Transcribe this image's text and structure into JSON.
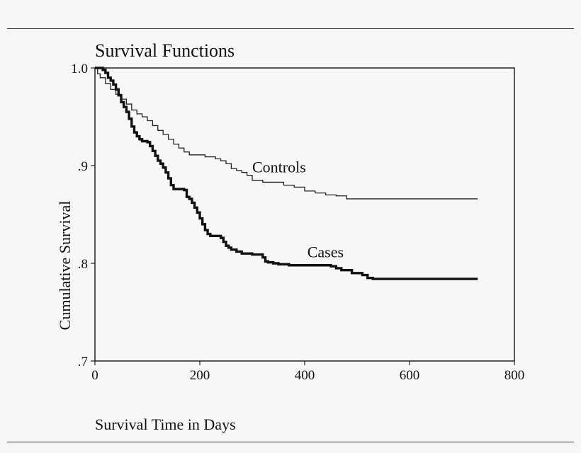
{
  "chart_data": {
    "type": "line",
    "title": "Survival Functions",
    "xlabel": "Survival Time in Days",
    "ylabel": "Cumulative Survival",
    "xlim": [
      0,
      800
    ],
    "ylim": [
      0.7,
      1.0
    ],
    "x_ticks": [
      {
        "value": 0,
        "label": "0"
      },
      {
        "value": 200,
        "label": "200"
      },
      {
        "value": 400,
        "label": "400"
      },
      {
        "value": 600,
        "label": "600"
      },
      {
        "value": 800,
        "label": "800"
      }
    ],
    "y_ticks": [
      {
        "value": 0.7,
        "label": ".7"
      },
      {
        "value": 0.8,
        "label": ".8"
      },
      {
        "value": 0.9,
        "label": ".9"
      },
      {
        "value": 1.0,
        "label": "1.0"
      }
    ],
    "grid": false,
    "legend": "none",
    "series": [
      {
        "name": "Controls",
        "color": "#222222",
        "step": true,
        "points": [
          [
            0,
            1.0
          ],
          [
            5,
            0.994
          ],
          [
            10,
            0.99
          ],
          [
            20,
            0.984
          ],
          [
            30,
            0.978
          ],
          [
            40,
            0.973
          ],
          [
            50,
            0.968
          ],
          [
            60,
            0.963
          ],
          [
            70,
            0.957
          ],
          [
            80,
            0.953
          ],
          [
            90,
            0.95
          ],
          [
            100,
            0.946
          ],
          [
            110,
            0.941
          ],
          [
            120,
            0.936
          ],
          [
            130,
            0.932
          ],
          [
            140,
            0.927
          ],
          [
            150,
            0.922
          ],
          [
            160,
            0.918
          ],
          [
            170,
            0.914
          ],
          [
            180,
            0.911
          ],
          [
            200,
            0.911
          ],
          [
            210,
            0.909
          ],
          [
            230,
            0.907
          ],
          [
            240,
            0.905
          ],
          [
            250,
            0.902
          ],
          [
            260,
            0.897
          ],
          [
            270,
            0.895
          ],
          [
            280,
            0.893
          ],
          [
            290,
            0.89
          ],
          [
            300,
            0.885
          ],
          [
            320,
            0.883
          ],
          [
            340,
            0.883
          ],
          [
            360,
            0.88
          ],
          [
            380,
            0.878
          ],
          [
            400,
            0.874
          ],
          [
            420,
            0.872
          ],
          [
            440,
            0.87
          ],
          [
            460,
            0.869
          ],
          [
            480,
            0.866
          ],
          [
            500,
            0.866
          ],
          [
            600,
            0.866
          ],
          [
            730,
            0.866
          ]
        ]
      },
      {
        "name": "Cases",
        "color": "#111111",
        "step": true,
        "points": [
          [
            0,
            1.0
          ],
          [
            10,
            1.0
          ],
          [
            15,
            0.998
          ],
          [
            20,
            0.995
          ],
          [
            25,
            0.99
          ],
          [
            30,
            0.987
          ],
          [
            35,
            0.983
          ],
          [
            40,
            0.978
          ],
          [
            45,
            0.972
          ],
          [
            50,
            0.965
          ],
          [
            55,
            0.96
          ],
          [
            60,
            0.955
          ],
          [
            65,
            0.948
          ],
          [
            70,
            0.94
          ],
          [
            75,
            0.934
          ],
          [
            80,
            0.93
          ],
          [
            85,
            0.927
          ],
          [
            90,
            0.925
          ],
          [
            100,
            0.924
          ],
          [
            105,
            0.92
          ],
          [
            110,
            0.915
          ],
          [
            115,
            0.91
          ],
          [
            120,
            0.905
          ],
          [
            125,
            0.902
          ],
          [
            130,
            0.898
          ],
          [
            135,
            0.893
          ],
          [
            140,
            0.887
          ],
          [
            145,
            0.88
          ],
          [
            150,
            0.876
          ],
          [
            170,
            0.875
          ],
          [
            175,
            0.868
          ],
          [
            180,
            0.866
          ],
          [
            185,
            0.862
          ],
          [
            190,
            0.857
          ],
          [
            195,
            0.852
          ],
          [
            200,
            0.846
          ],
          [
            205,
            0.84
          ],
          [
            210,
            0.834
          ],
          [
            215,
            0.83
          ],
          [
            220,
            0.828
          ],
          [
            240,
            0.826
          ],
          [
            245,
            0.822
          ],
          [
            250,
            0.818
          ],
          [
            255,
            0.816
          ],
          [
            260,
            0.814
          ],
          [
            270,
            0.812
          ],
          [
            280,
            0.81
          ],
          [
            300,
            0.809
          ],
          [
            320,
            0.806
          ],
          [
            325,
            0.802
          ],
          [
            330,
            0.801
          ],
          [
            340,
            0.8
          ],
          [
            350,
            0.799
          ],
          [
            370,
            0.798
          ],
          [
            400,
            0.798
          ],
          [
            440,
            0.798
          ],
          [
            450,
            0.797
          ],
          [
            460,
            0.795
          ],
          [
            470,
            0.793
          ],
          [
            490,
            0.79
          ],
          [
            510,
            0.788
          ],
          [
            520,
            0.785
          ],
          [
            530,
            0.784
          ],
          [
            600,
            0.784
          ],
          [
            730,
            0.784
          ]
        ]
      }
    ],
    "annotations": [
      {
        "text": "Controls",
        "x": 300,
        "y": 0.893
      },
      {
        "text": "Cases",
        "x": 405,
        "y": 0.806
      }
    ]
  }
}
